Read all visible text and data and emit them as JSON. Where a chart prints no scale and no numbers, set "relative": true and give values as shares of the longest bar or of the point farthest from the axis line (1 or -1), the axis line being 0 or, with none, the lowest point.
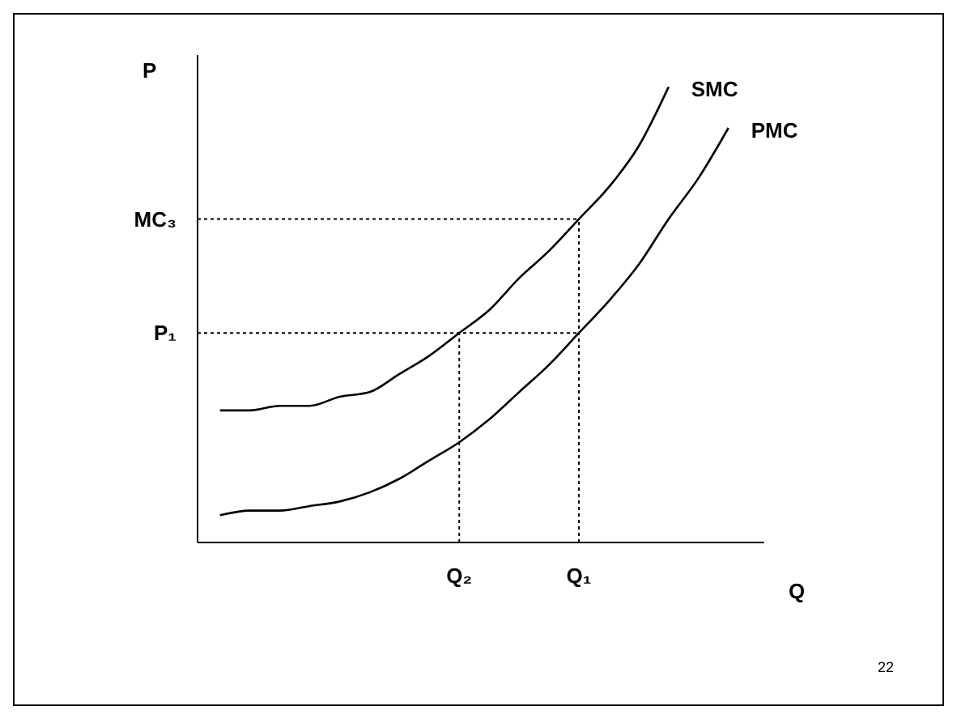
{
  "chart_data": {
    "type": "line",
    "relative": true,
    "xlabel": "Q",
    "ylabel": "P",
    "categories": [
      null,
      null,
      null,
      null,
      null,
      null,
      null,
      null,
      "Q₂",
      null,
      null,
      null,
      "Q₁",
      null,
      null,
      null,
      null,
      null
    ],
    "series": [
      {
        "name": "SMC",
        "color": "#000000",
        "values": [
          0.29,
          0.29,
          0.3,
          0.3,
          0.32,
          0.33,
          0.37,
          0.41,
          0.46,
          0.51,
          0.58,
          0.64,
          0.71,
          0.78,
          0.87,
          1.0,
          null,
          null
        ]
      },
      {
        "name": "PMC",
        "color": "#000000",
        "values": [
          0.06,
          0.07,
          0.07,
          0.08,
          0.09,
          0.11,
          0.14,
          0.18,
          0.22,
          0.27,
          0.33,
          0.39,
          0.46,
          0.53,
          0.61,
          0.71,
          0.8,
          0.91
        ]
      }
    ],
    "ref_lines": [
      {
        "axis": "y",
        "value": 0.71,
        "label": "MC₃",
        "line_style": "dotted"
      },
      {
        "axis": "y",
        "value": 0.46,
        "label": "P₁",
        "line_style": "dotted"
      },
      {
        "axis": "x",
        "value": "Q₂",
        "line_style": "dotted"
      },
      {
        "axis": "x",
        "value": "Q₁",
        "line_style": "dotted"
      }
    ],
    "annotations": [
      "22"
    ],
    "tick_labels": "x",
    "legend": false,
    "grid": false,
    "marker": "none",
    "line_style": "solid"
  }
}
